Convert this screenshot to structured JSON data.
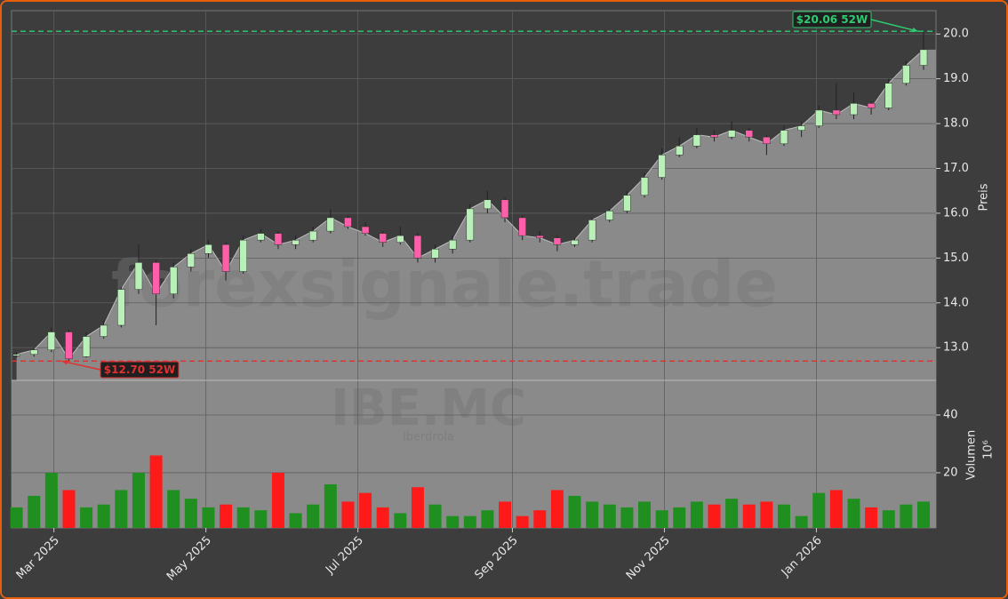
{
  "chart_data": {
    "type": "candlestick",
    "watermark": "forexsignale.trade",
    "symbol": "IBE.MC",
    "company": "Iberdrola",
    "ylabel": "Preis",
    "y2label": "Volumen",
    "y2unit": "10⁶",
    "x": [
      "2025-02-14",
      "2025-02-21",
      "2025-02-28",
      "2025-03-07",
      "2025-03-14",
      "2025-03-21",
      "2025-03-28",
      "2025-04-04",
      "2025-04-11",
      "2025-04-18",
      "2025-04-25",
      "2025-05-02",
      "2025-05-09",
      "2025-05-16",
      "2025-05-23",
      "2025-05-30",
      "2025-06-06",
      "2025-06-13",
      "2025-06-20",
      "2025-06-27",
      "2025-07-04",
      "2025-07-11",
      "2025-07-18",
      "2025-07-25",
      "2025-08-01",
      "2025-08-08",
      "2025-08-15",
      "2025-08-22",
      "2025-08-29",
      "2025-09-05",
      "2025-09-12",
      "2025-09-19",
      "2025-09-26",
      "2025-10-03",
      "2025-10-10",
      "2025-10-17",
      "2025-10-24",
      "2025-10-31",
      "2025-11-07",
      "2025-11-14",
      "2025-11-21",
      "2025-11-28",
      "2025-12-05",
      "2025-12-12",
      "2025-12-19",
      "2025-12-26",
      "2026-01-02",
      "2026-01-09",
      "2026-01-16",
      "2026-01-23",
      "2026-01-30",
      "2026-02-06",
      "2026-02-13"
    ],
    "open": [
      12.82,
      12.85,
      12.95,
      13.35,
      12.8,
      13.25,
      13.5,
      14.3,
      14.9,
      14.2,
      14.8,
      15.1,
      15.3,
      14.7,
      15.4,
      15.55,
      15.3,
      15.4,
      15.6,
      15.9,
      15.7,
      15.55,
      15.35,
      15.5,
      15.0,
      15.2,
      15.4,
      16.1,
      16.3,
      15.9,
      15.5,
      15.45,
      15.3,
      15.4,
      15.85,
      16.05,
      16.4,
      16.8,
      17.3,
      17.5,
      17.75,
      17.7,
      17.85,
      17.7,
      17.55,
      17.85,
      17.95,
      18.3,
      18.2,
      18.45,
      18.35,
      18.9,
      19.3
    ],
    "high": [
      12.9,
      13.0,
      13.45,
      13.4,
      13.35,
      13.6,
      14.35,
      15.3,
      14.95,
      14.9,
      15.2,
      15.4,
      15.35,
      15.5,
      15.65,
      15.6,
      15.5,
      15.7,
      16.1,
      15.95,
      15.8,
      15.6,
      15.7,
      15.55,
      15.3,
      15.5,
      16.2,
      16.5,
      16.35,
      15.95,
      15.6,
      15.5,
      15.45,
      15.9,
      16.1,
      16.5,
      16.9,
      17.45,
      17.7,
      17.9,
      17.85,
      18.05,
      17.9,
      17.75,
      17.95,
      18.05,
      18.4,
      18.9,
      18.7,
      18.5,
      19.0,
      19.4,
      20.06
    ],
    "low": [
      12.78,
      12.8,
      12.9,
      12.7,
      12.78,
      13.2,
      13.45,
      14.2,
      13.5,
      14.1,
      14.7,
      15.0,
      14.5,
      14.65,
      15.35,
      15.2,
      15.2,
      15.35,
      15.55,
      15.65,
      15.5,
      15.25,
      15.3,
      14.9,
      14.9,
      15.1,
      15.35,
      16.0,
      15.8,
      15.4,
      15.35,
      15.15,
      15.25,
      15.35,
      15.8,
      16.0,
      16.35,
      16.75,
      17.25,
      17.45,
      17.6,
      17.65,
      17.6,
      17.3,
      17.5,
      17.7,
      17.9,
      18.1,
      18.1,
      18.2,
      18.3,
      18.85,
      19.2
    ],
    "close": [
      12.85,
      12.95,
      13.35,
      12.75,
      13.25,
      13.5,
      14.3,
      14.9,
      14.2,
      14.8,
      15.1,
      15.3,
      14.7,
      15.4,
      15.55,
      15.3,
      15.4,
      15.6,
      15.9,
      15.7,
      15.55,
      15.35,
      15.5,
      15.0,
      15.2,
      15.4,
      16.1,
      16.3,
      15.9,
      15.5,
      15.45,
      15.3,
      15.4,
      15.85,
      16.05,
      16.4,
      16.8,
      17.3,
      17.5,
      17.75,
      17.7,
      17.85,
      17.7,
      17.55,
      17.85,
      17.95,
      18.3,
      18.2,
      18.45,
      18.35,
      18.9,
      19.3,
      19.65
    ],
    "volume": [
      8,
      12,
      20,
      14,
      8,
      9,
      14,
      20,
      26,
      14,
      11,
      8,
      9,
      8,
      7,
      20,
      6,
      9,
      16,
      10,
      13,
      8,
      6,
      15,
      9,
      5,
      5,
      7,
      10,
      5,
      7,
      14,
      12,
      10,
      9,
      8,
      10,
      7,
      8,
      10,
      9,
      11,
      9,
      10,
      9,
      5,
      13,
      14,
      11,
      8,
      7,
      9,
      10
    ],
    "up_color": "#b8f0b8",
    "down_color": "#ff5fa8",
    "volume_up_color": "#1f8f1f",
    "volume_down_color": "#ff1a1a",
    "area_color": "#8a8a8a",
    "xlim": [
      "2025-02-12",
      "2026-02-18"
    ],
    "xticks": [
      {
        "value": "2025-03-01",
        "label": "Mar 2025"
      },
      {
        "value": "2025-05-01",
        "label": "May 2025"
      },
      {
        "value": "2025-07-01",
        "label": "Jul 2025"
      },
      {
        "value": "2025-09-01",
        "label": "Sep 2025"
      },
      {
        "value": "2025-11-01",
        "label": "Nov 2025"
      },
      {
        "value": "2026-01-01",
        "label": "Jan 2026"
      }
    ],
    "ylim": [
      12.27,
      20.52
    ],
    "yticks": [
      {
        "value": 13,
        "label": "13.0"
      },
      {
        "value": 14,
        "label": "14.0"
      },
      {
        "value": 15,
        "label": "15.0"
      },
      {
        "value": 16,
        "label": "16.0"
      },
      {
        "value": 17,
        "label": "17.0"
      },
      {
        "value": 18,
        "label": "18.0"
      },
      {
        "value": 19,
        "label": "19.0"
      },
      {
        "value": 20,
        "label": "20.0"
      }
    ],
    "y2lim": [
      0.9,
      52
    ],
    "y2ticks": [
      20,
      40
    ],
    "grid": true,
    "high_line": {
      "value": 20.06,
      "label": "$20.06 52W",
      "color": "#2ecc71"
    },
    "low_line": {
      "value": 12.7,
      "label": "$12.70 52W",
      "color": "#e03030"
    }
  }
}
